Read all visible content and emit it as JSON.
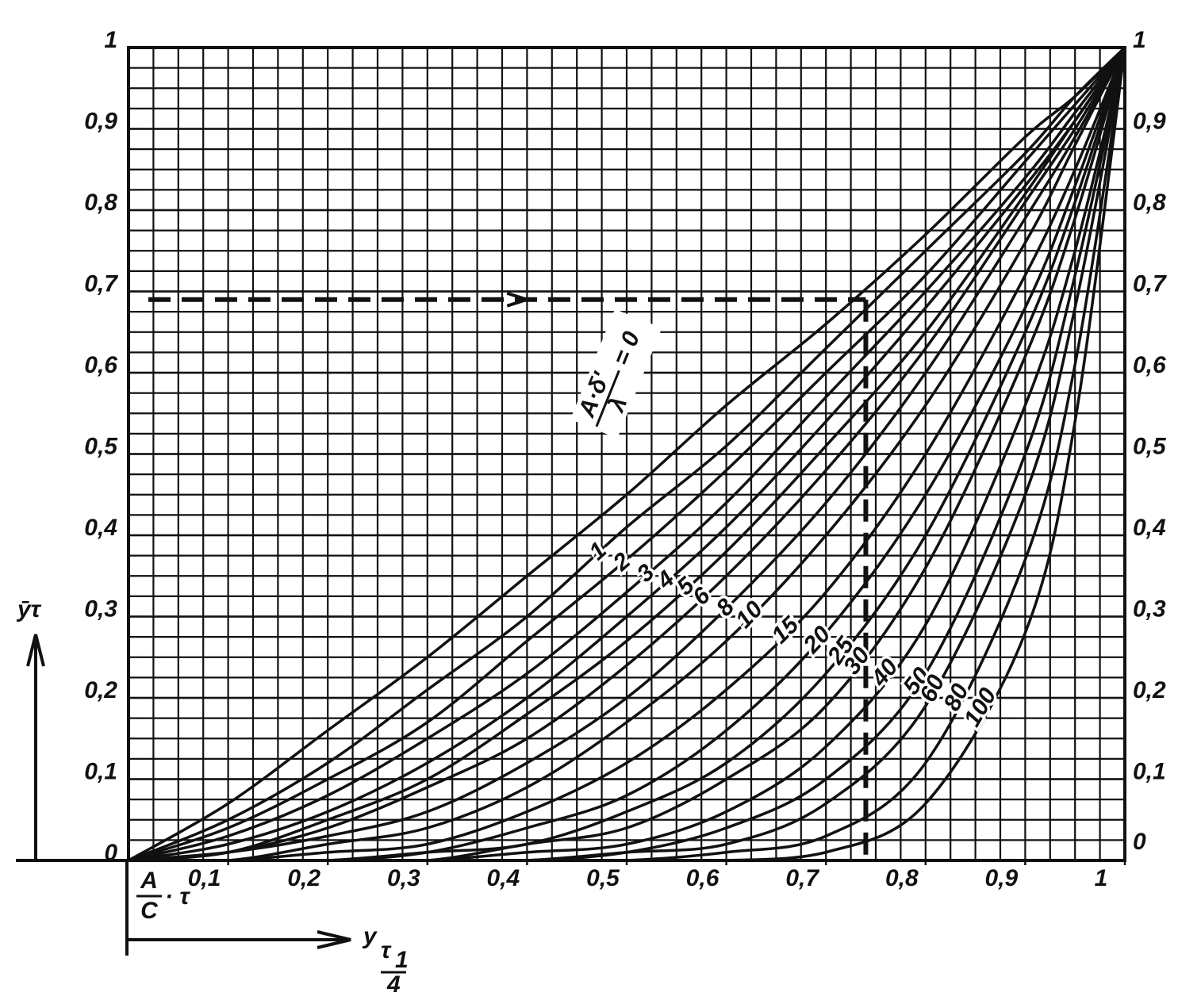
{
  "chart_data": {
    "type": "line",
    "y_label": "ȳτ",
    "x_label_parts": [
      "y",
      "τ",
      "1",
      "4"
    ],
    "origin_label": {
      "numerator": "A",
      "denominator": "C",
      "factor": "· τ"
    },
    "curve_parameter": {
      "numerator": "A·δ'",
      "denominator": "λ",
      "equals": "="
    },
    "x": [
      0,
      0.1,
      0.2,
      0.3,
      0.4,
      0.5,
      0.6,
      0.7,
      0.8,
      0.9,
      0.95,
      1
    ],
    "series": [
      {
        "name": "0",
        "color": "#111",
        "values": [
          0,
          0.07,
          0.16,
          0.25,
          0.35,
          0.45,
          0.56,
          0.66,
          0.77,
          0.89,
          0.94,
          1
        ]
      },
      {
        "name": "1",
        "color": "#111",
        "values": [
          0,
          0.05,
          0.12,
          0.21,
          0.3,
          0.41,
          0.51,
          0.63,
          0.75,
          0.87,
          0.94,
          1
        ]
      },
      {
        "name": "2",
        "color": "#111",
        "values": [
          0,
          0.04,
          0.1,
          0.17,
          0.27,
          0.37,
          0.48,
          0.6,
          0.72,
          0.86,
          0.93,
          1
        ]
      },
      {
        "name": "3",
        "color": "#111",
        "values": [
          0,
          0.03,
          0.08,
          0.15,
          0.23,
          0.33,
          0.44,
          0.57,
          0.7,
          0.84,
          0.92,
          1
        ]
      },
      {
        "name": "4",
        "color": "#111",
        "values": [
          0,
          0.02,
          0.06,
          0.12,
          0.2,
          0.3,
          0.41,
          0.54,
          0.68,
          0.83,
          0.91,
          1
        ]
      },
      {
        "name": "5",
        "color": "#111",
        "values": [
          0,
          0.01,
          0.05,
          0.1,
          0.18,
          0.27,
          0.38,
          0.51,
          0.65,
          0.82,
          0.91,
          1
        ]
      },
      {
        "name": "6",
        "color": "#111",
        "values": [
          0,
          0.01,
          0.04,
          0.09,
          0.15,
          0.24,
          0.35,
          0.48,
          0.63,
          0.81,
          0.9,
          1
        ]
      },
      {
        "name": "8",
        "color": "#111",
        "values": [
          0,
          0.01,
          0.03,
          0.06,
          0.12,
          0.2,
          0.31,
          0.44,
          0.6,
          0.79,
          0.89,
          1
        ]
      },
      {
        "name": "10",
        "color": "#111",
        "values": [
          0,
          0,
          0.02,
          0.04,
          0.09,
          0.17,
          0.27,
          0.4,
          0.56,
          0.76,
          0.88,
          1
        ]
      },
      {
        "name": "15",
        "color": "#111",
        "values": [
          0,
          0,
          0.01,
          0.02,
          0.06,
          0.12,
          0.21,
          0.33,
          0.5,
          0.72,
          0.85,
          1
        ]
      },
      {
        "name": "20",
        "color": "#111",
        "values": [
          0,
          0,
          0,
          0.01,
          0.04,
          0.08,
          0.16,
          0.28,
          0.45,
          0.68,
          0.83,
          1
        ]
      },
      {
        "name": "25",
        "color": "#111",
        "values": [
          0,
          0,
          0,
          0.01,
          0.02,
          0.06,
          0.12,
          0.23,
          0.4,
          0.65,
          0.81,
          1
        ]
      },
      {
        "name": "30",
        "color": "#111",
        "values": [
          0,
          0,
          0,
          0,
          0.02,
          0.04,
          0.1,
          0.19,
          0.36,
          0.62,
          0.79,
          1
        ]
      },
      {
        "name": "40",
        "color": "#111",
        "values": [
          0,
          0,
          0,
          0,
          0.01,
          0.02,
          0.06,
          0.14,
          0.29,
          0.56,
          0.75,
          1
        ]
      },
      {
        "name": "50",
        "color": "#111",
        "values": [
          0,
          0,
          0,
          0,
          0,
          0.01,
          0.04,
          0.1,
          0.23,
          0.5,
          0.72,
          1
        ]
      },
      {
        "name": "60",
        "color": "#111",
        "values": [
          0,
          0,
          0,
          0,
          0,
          0.01,
          0.02,
          0.07,
          0.19,
          0.45,
          0.68,
          1
        ]
      },
      {
        "name": "80",
        "color": "#111",
        "values": [
          0,
          0,
          0,
          0,
          0,
          0,
          0.01,
          0.03,
          0.12,
          0.37,
          0.61,
          1
        ]
      },
      {
        "name": "100",
        "color": "#111",
        "values": [
          0,
          0,
          0,
          0,
          0,
          0,
          0,
          0.01,
          0.07,
          0.28,
          0.54,
          1
        ]
      }
    ],
    "xlim": [
      0,
      1
    ],
    "ylim": [
      0,
      1
    ],
    "xticks": [
      {
        "value": 0.1,
        "label": "0,1"
      },
      {
        "value": 0.2,
        "label": "0,2"
      },
      {
        "value": 0.3,
        "label": "0,3"
      },
      {
        "value": 0.4,
        "label": "0,4"
      },
      {
        "value": 0.5,
        "label": "0,5"
      },
      {
        "value": 0.6,
        "label": "0,6"
      },
      {
        "value": 0.7,
        "label": "0,7"
      },
      {
        "value": 0.8,
        "label": "0,8"
      },
      {
        "value": 0.9,
        "label": "0,9"
      },
      1
    ],
    "yticks": [
      0,
      {
        "value": 0.1,
        "label": "0,1"
      },
      {
        "value": 0.2,
        "label": "0,2"
      },
      {
        "value": 0.3,
        "label": "0,3"
      },
      {
        "value": 0.4,
        "label": "0,4"
      },
      {
        "value": 0.5,
        "label": "0,5"
      },
      {
        "value": 0.6,
        "label": "0,6"
      },
      {
        "value": 0.7,
        "label": "0,7"
      },
      {
        "value": 0.8,
        "label": "0,8"
      },
      {
        "value": 0.9,
        "label": "0,9"
      },
      1
    ],
    "grid": true,
    "grid_step": 0.025,
    "reference_point": {
      "x": 0.74,
      "y": 0.69
    }
  }
}
